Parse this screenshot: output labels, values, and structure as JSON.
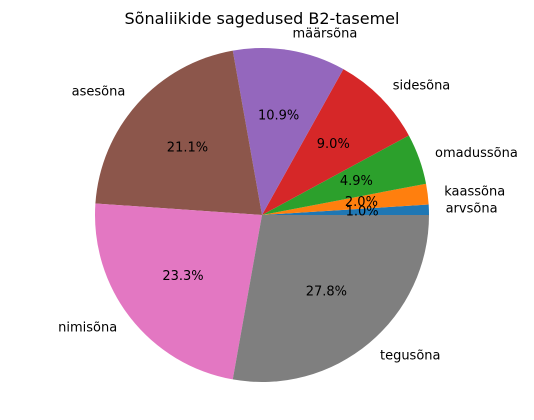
{
  "chart_data": {
    "type": "pie",
    "title": "Sõnaliikide sagedused B2-tasemel",
    "slices": [
      {
        "label": "arvsõna",
        "value": 1.0,
        "pct_label": "1.0%",
        "color": "#1f77b4"
      },
      {
        "label": "kaassõna",
        "value": 2.0,
        "pct_label": "2.0%",
        "color": "#ff7f0e"
      },
      {
        "label": "omadussõna",
        "value": 4.9,
        "pct_label": "4.9%",
        "color": "#2ca02c"
      },
      {
        "label": "sidesõna",
        "value": 9.0,
        "pct_label": "9.0%",
        "color": "#d62728"
      },
      {
        "label": "määrsõna",
        "value": 10.9,
        "pct_label": "10.9%",
        "color": "#9467bd"
      },
      {
        "label": "asesõna",
        "value": 21.1,
        "pct_label": "21.1%",
        "color": "#8c564b"
      },
      {
        "label": "nimisõna",
        "value": 23.3,
        "pct_label": "23.3%",
        "color": "#e377c2"
      },
      {
        "label": "tegusõna",
        "value": 27.8,
        "pct_label": "27.8%",
        "color": "#7f7f7f"
      }
    ],
    "start_angle_deg": 0,
    "direction": "counterclockwise"
  }
}
